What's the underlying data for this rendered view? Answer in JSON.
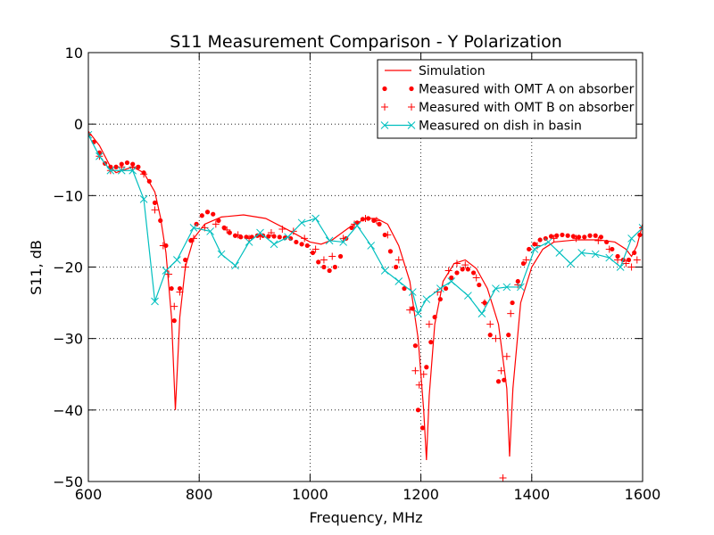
{
  "chart_data": {
    "type": "line",
    "title": "S11 Measurement Comparison - Y Polarization",
    "x_label": "Frequency, MHz",
    "y_label": "S11, dB",
    "xlim": [
      600,
      1600
    ],
    "xticks": [
      600,
      800,
      1000,
      1200,
      1400,
      1600
    ],
    "ylim": [
      -50,
      10
    ],
    "yticks": [
      {
        "value": -50,
        "label": "−50"
      },
      {
        "value": -40,
        "label": "−40"
      },
      {
        "value": -30,
        "label": "−30"
      },
      {
        "value": -20,
        "label": "−20"
      },
      {
        "value": -10,
        "label": "−10"
      },
      0,
      10
    ],
    "grid": true,
    "legend": "upper right",
    "series": [
      {
        "name": "Simulation",
        "color": "#ff0000",
        "marker": "none",
        "line": true,
        "x": [
          600,
          620,
          640,
          650,
          660,
          680,
          700,
          720,
          730,
          740,
          750,
          757,
          765,
          775,
          790,
          810,
          840,
          880,
          920,
          960,
          1000,
          1020,
          1040,
          1070,
          1100,
          1120,
          1140,
          1160,
          1180,
          1195,
          1205,
          1210,
          1215,
          1225,
          1240,
          1260,
          1280,
          1300,
          1320,
          1340,
          1355,
          1360,
          1366,
          1380,
          1400,
          1420,
          1440,
          1480,
          1520,
          1550,
          1570,
          1580,
          1590,
          1600
        ],
        "values": [
          -1,
          -3,
          -6,
          -6.8,
          -6.5,
          -6,
          -6.8,
          -9.5,
          -13,
          -18,
          -27,
          -40,
          -27,
          -20,
          -16,
          -14,
          -13,
          -12.7,
          -13.2,
          -14.8,
          -16.5,
          -16.8,
          -16.2,
          -14.5,
          -13.2,
          -13.2,
          -14,
          -17,
          -22,
          -30,
          -40,
          -47,
          -38,
          -28,
          -22,
          -19.5,
          -19,
          -20.2,
          -23,
          -28,
          -37,
          -46.5,
          -37,
          -25,
          -20,
          -17.5,
          -16.5,
          -16.2,
          -16.2,
          -16.5,
          -17.5,
          -18.5,
          -17,
          -14
        ]
      },
      {
        "name": "Measured with OMT A on absorber",
        "color": "#ff0000",
        "marker": "dot",
        "line": false,
        "x": [
          600,
          610,
          620,
          630,
          640,
          650,
          660,
          670,
          680,
          690,
          700,
          710,
          720,
          730,
          740,
          750,
          755,
          765,
          775,
          785,
          795,
          805,
          815,
          825,
          835,
          845,
          855,
          865,
          875,
          885,
          895,
          905,
          915,
          925,
          935,
          945,
          955,
          965,
          975,
          985,
          995,
          1005,
          1015,
          1025,
          1035,
          1045,
          1055,
          1065,
          1075,
          1085,
          1095,
          1105,
          1115,
          1125,
          1135,
          1145,
          1155,
          1170,
          1185,
          1190,
          1195,
          1203,
          1210,
          1218,
          1225,
          1235,
          1245,
          1255,
          1265,
          1275,
          1285,
          1295,
          1305,
          1315,
          1325,
          1340,
          1350,
          1358,
          1365,
          1375,
          1385,
          1395,
          1405,
          1415,
          1425,
          1435,
          1445,
          1455,
          1465,
          1475,
          1485,
          1495,
          1505,
          1515,
          1525,
          1535,
          1545,
          1555,
          1565,
          1575,
          1585,
          1595,
          1600
        ],
        "values": [
          -1.5,
          -2.5,
          -4,
          -5.5,
          -6,
          -6,
          -5.6,
          -5.4,
          -5.6,
          -6,
          -6.8,
          -8,
          -11,
          -13.5,
          -17,
          -23,
          -27.5,
          -23,
          -19,
          -16.3,
          -14,
          -12.8,
          -12.3,
          -12.6,
          -13.5,
          -14.5,
          -15.2,
          -15.6,
          -15.8,
          -15.8,
          -15.8,
          -15.6,
          -15.6,
          -15.7,
          -15.7,
          -15.8,
          -15.9,
          -16,
          -16.5,
          -16.8,
          -17,
          -18,
          -19.3,
          -20,
          -20.5,
          -20,
          -18.5,
          -16,
          -14.5,
          -13.8,
          -13.3,
          -13.2,
          -13.5,
          -14,
          -15.5,
          -17.8,
          -20,
          -23,
          -25.8,
          -31,
          -40,
          -42.5,
          -34,
          -30.5,
          -27,
          -24.5,
          -23,
          -21.5,
          -20.8,
          -20.3,
          -20.3,
          -20.8,
          -22.5,
          -25,
          -29.5,
          -36,
          -35.8,
          -29.5,
          -25,
          -22,
          -19.5,
          -17.5,
          -16.8,
          -16.2,
          -16,
          -15.7,
          -15.6,
          -15.5,
          -15.6,
          -15.7,
          -15.8,
          -15.8,
          -15.6,
          -15.6,
          -15.8,
          -16.5,
          -17.5,
          -18.5,
          -19,
          -19,
          -18,
          -15.5,
          -14.5
        ]
      },
      {
        "name": "Measured with OMT B on absorber",
        "color": "#ff0000",
        "marker": "plus",
        "line": false,
        "x": [
          600,
          620,
          640,
          660,
          680,
          700,
          720,
          735,
          745,
          755,
          765,
          775,
          790,
          810,
          830,
          850,
          870,
          890,
          910,
          930,
          950,
          970,
          990,
          1010,
          1025,
          1040,
          1060,
          1080,
          1100,
          1120,
          1140,
          1160,
          1180,
          1190,
          1197,
          1205,
          1215,
          1230,
          1250,
          1265,
          1280,
          1300,
          1315,
          1325,
          1335,
          1345,
          1348,
          1355,
          1362,
          1375,
          1390,
          1410,
          1440,
          1480,
          1520,
          1540,
          1555,
          1570,
          1580,
          1590,
          1600
        ],
        "values": [
          -1.5,
          -4.5,
          -6.5,
          -6,
          -6,
          -7,
          -12,
          -17,
          -21,
          -25.5,
          -23.5,
          -20,
          -16,
          -14.5,
          -14,
          -14.8,
          -15.5,
          -16,
          -15.7,
          -15.2,
          -14.7,
          -15,
          -16,
          -17.5,
          -19,
          -18.5,
          -16,
          -14,
          -13.2,
          -13.5,
          -15.5,
          -19,
          -26,
          -34.5,
          -36.5,
          -35,
          -28,
          -23.5,
          -20.5,
          -19.5,
          -19.7,
          -21.5,
          -25,
          -28,
          -30,
          -34.5,
          -49.5,
          -32.5,
          -26.5,
          -22.5,
          -19,
          -17,
          -16,
          -16,
          -16.3,
          -17.5,
          -19,
          -19.5,
          -20,
          -19,
          -14.5
        ]
      },
      {
        "name": "Measured on dish in basin",
        "color": "#00bfbf",
        "marker": "x",
        "line": true,
        "x": [
          600,
          620,
          640,
          660,
          680,
          700,
          720,
          740,
          760,
          790,
          820,
          840,
          865,
          890,
          910,
          935,
          960,
          985,
          1010,
          1035,
          1060,
          1085,
          1110,
          1135,
          1160,
          1185,
          1195,
          1210,
          1235,
          1255,
          1285,
          1310,
          1335,
          1355,
          1380,
          1405,
          1430,
          1450,
          1470,
          1490,
          1515,
          1540,
          1560,
          1580,
          1600
        ],
        "values": [
          -1.5,
          -4.5,
          -6.5,
          -6.5,
          -6.5,
          -10.5,
          -24.8,
          -20.5,
          -19,
          -14.5,
          -15,
          -18.2,
          -19.8,
          -16.5,
          -15.2,
          -16.8,
          -15.8,
          -13.8,
          -13.2,
          -16.3,
          -16.5,
          -14.2,
          -17,
          -20.5,
          -22,
          -23.5,
          -26.5,
          -24.5,
          -23,
          -22,
          -24,
          -26.5,
          -23,
          -22.8,
          -22.8,
          -17.5,
          -16.5,
          -18,
          -19.5,
          -18,
          -18.2,
          -18.7,
          -20,
          -16,
          -14.5
        ]
      }
    ]
  }
}
